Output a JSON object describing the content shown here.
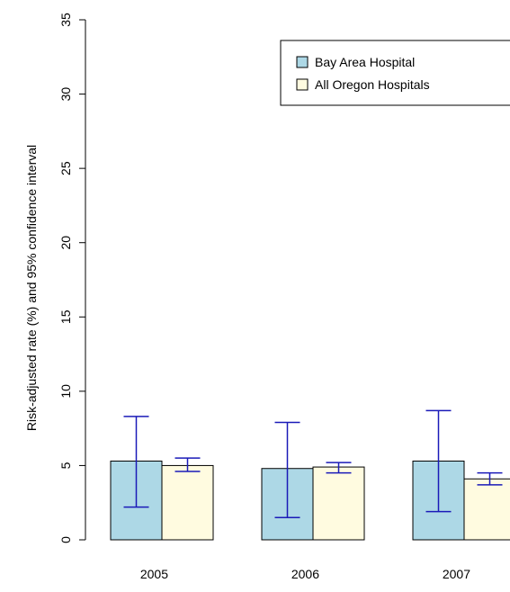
{
  "chart_data": {
    "type": "bar",
    "title": "",
    "xlabel": "",
    "ylabel": "Risk-adjusted rate (%) and 95% confidence interval",
    "ylim": [
      0,
      35
    ],
    "yticks": [
      0,
      5,
      10,
      15,
      20,
      25,
      30,
      35
    ],
    "categories": [
      "2005",
      "2006",
      "2007"
    ],
    "legend_position": "top-right",
    "grid": false,
    "series": [
      {
        "name": "Bay Area Hospital",
        "color": "#add8e6",
        "values": [
          5.3,
          4.8,
          5.3
        ],
        "ci_low": [
          2.2,
          1.5,
          1.9
        ],
        "ci_high": [
          8.3,
          7.9,
          8.7
        ]
      },
      {
        "name": "All Oregon Hospitals",
        "color": "#fffbe0",
        "values": [
          5.0,
          4.9,
          4.1
        ],
        "ci_low": [
          4.6,
          4.5,
          3.7
        ],
        "ci_high": [
          5.5,
          5.2,
          4.5
        ]
      }
    ],
    "errorbar_color": "#1a1ab8"
  }
}
